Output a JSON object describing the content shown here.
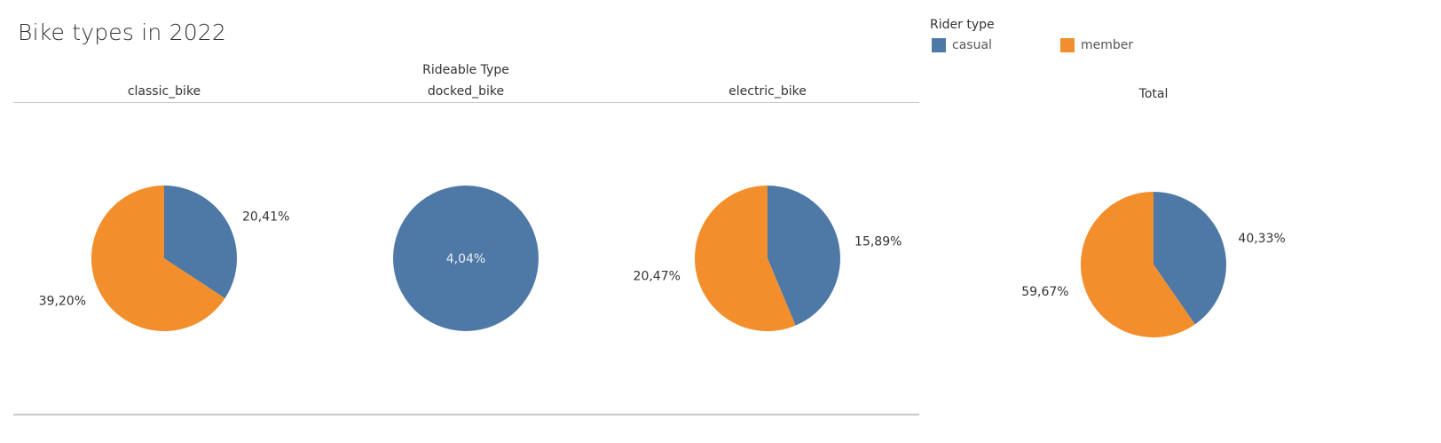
{
  "title": "Bike types in 2022",
  "legend": {
    "title": "Rider type",
    "items": [
      {
        "label": "casual",
        "color": "#4e79a7"
      },
      {
        "label": "member",
        "color": "#f28e2b"
      }
    ]
  },
  "column_header": "Rideable Type",
  "total_label": "Total",
  "chart_data": [
    {
      "type": "pie",
      "category": "classic_bike",
      "slices": [
        {
          "name": "casual",
          "value": 20.41,
          "label": "20,41%",
          "color": "#4e79a7"
        },
        {
          "name": "member",
          "value": 39.2,
          "label": "39,20%",
          "color": "#f28e2b"
        }
      ]
    },
    {
      "type": "pie",
      "category": "docked_bike",
      "slices": [
        {
          "name": "casual",
          "value": 4.04,
          "label": "4,04%",
          "color": "#4e79a7"
        }
      ]
    },
    {
      "type": "pie",
      "category": "electric_bike",
      "slices": [
        {
          "name": "casual",
          "value": 15.89,
          "label": "15,89%",
          "color": "#4e79a7"
        },
        {
          "name": "member",
          "value": 20.47,
          "label": "20,47%",
          "color": "#f28e2b"
        }
      ]
    },
    {
      "type": "pie",
      "category": "Total",
      "slices": [
        {
          "name": "casual",
          "value": 40.33,
          "label": "40,33%",
          "color": "#4e79a7"
        },
        {
          "name": "member",
          "value": 59.67,
          "label": "59,67%",
          "color": "#f28e2b"
        }
      ]
    }
  ]
}
